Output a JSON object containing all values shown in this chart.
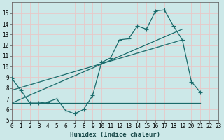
{
  "xlabel": "Humidex (Indice chaleur)",
  "bg_color": "#cce8e8",
  "grid_color": "#e8c8c8",
  "line_color": "#1a6b6b",
  "x_data": [
    0,
    1,
    2,
    3,
    4,
    5,
    6,
    7,
    8,
    9,
    10,
    11,
    12,
    13,
    14,
    15,
    16,
    17,
    18,
    19,
    20,
    21
  ],
  "y_main": [
    8.9,
    7.8,
    6.6,
    6.6,
    6.7,
    7.0,
    5.9,
    5.6,
    6.0,
    7.3,
    10.4,
    10.8,
    12.5,
    12.6,
    13.8,
    13.5,
    15.2,
    15.3,
    13.8,
    12.5,
    8.6,
    7.6
  ],
  "y_line1_x": [
    0,
    21
  ],
  "y_line1_y": [
    6.6,
    6.6
  ],
  "y_line2_x": [
    0,
    19
  ],
  "y_line2_y": [
    7.8,
    12.5
  ],
  "y_line3_x": [
    0,
    19
  ],
  "y_line3_y": [
    6.6,
    13.5
  ],
  "xlim": [
    0,
    23
  ],
  "ylim": [
    5,
    16
  ],
  "yticks": [
    5,
    6,
    7,
    8,
    9,
    10,
    11,
    12,
    13,
    14,
    15
  ],
  "xticks": [
    0,
    1,
    2,
    3,
    4,
    5,
    6,
    7,
    8,
    9,
    10,
    11,
    12,
    13,
    14,
    15,
    16,
    17,
    18,
    19,
    20,
    21,
    22,
    23
  ]
}
